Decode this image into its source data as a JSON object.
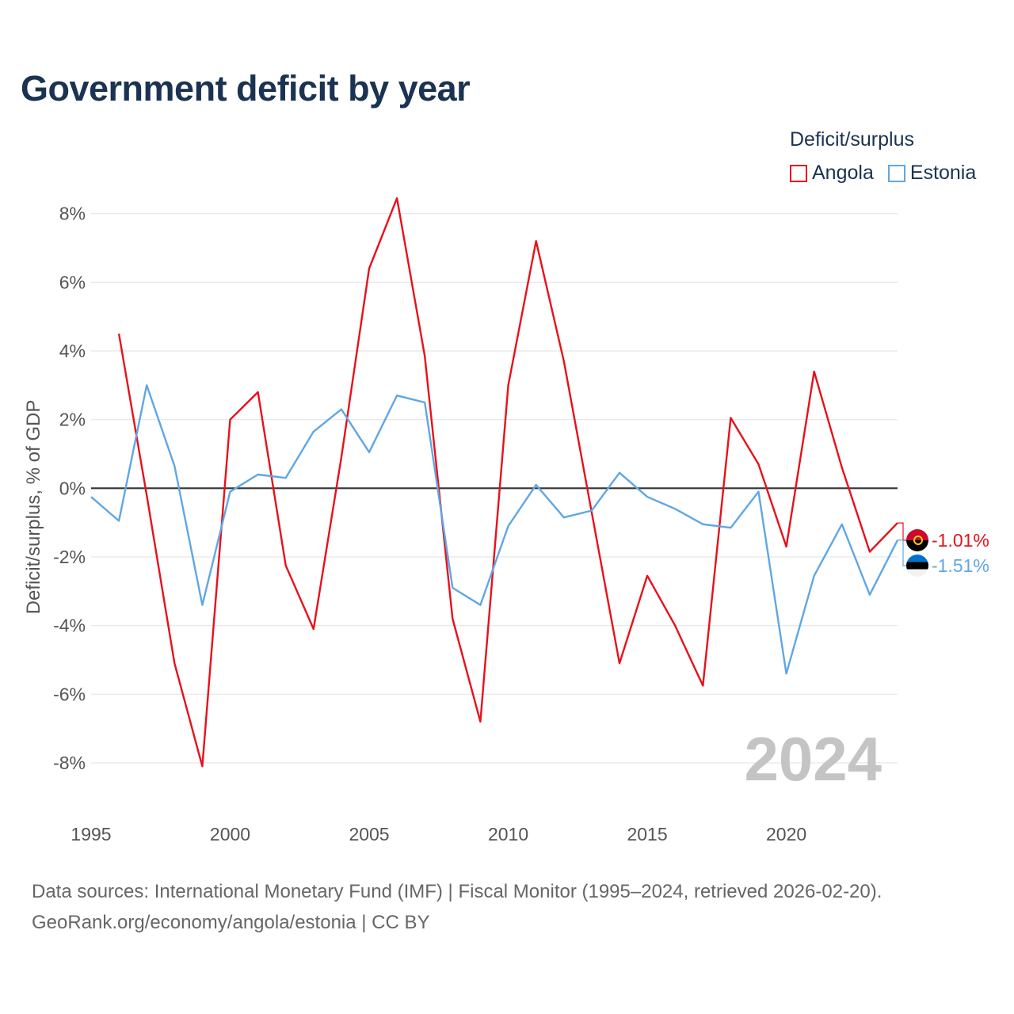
{
  "title": "Government deficit by year",
  "legend": {
    "title": "Deficit/surplus",
    "items": [
      {
        "label": "Angola",
        "color": "#e8101b"
      },
      {
        "label": "Estonia",
        "color": "#5fa7e4"
      }
    ]
  },
  "year_watermark": "2024",
  "footer": {
    "line1": "Data sources: International Monetary Fund (IMF) | Fiscal Monitor (1995–2024, retrieved 2026-02-20).",
    "line2": "GeoRank.org/economy/angola/estonia | CC BY"
  },
  "chart_data": {
    "type": "line",
    "title": "Government deficit by year",
    "xlabel": "",
    "ylabel": "Deficit/surplus, % of GDP",
    "xlim": [
      1995,
      2024
    ],
    "ylim": [
      -9.5,
      8.5
    ],
    "x_ticks": [
      1995,
      2000,
      2005,
      2010,
      2015,
      2020
    ],
    "y_ticks": [
      {
        "value": 8,
        "label": "8%"
      },
      {
        "value": 6,
        "label": "6%"
      },
      {
        "value": 4,
        "label": "4%"
      },
      {
        "value": 2,
        "label": "2%"
      },
      {
        "value": 0,
        "label": "0%"
      },
      {
        "value": -2,
        "label": "-2%"
      },
      {
        "value": -4,
        "label": "-4%"
      },
      {
        "value": -6,
        "label": "-6%"
      },
      {
        "value": -8,
        "label": "-8%"
      }
    ],
    "legend_position": "top-right",
    "series": [
      {
        "name": "Angola",
        "color": "#e8101b",
        "end_label": "-1.01%",
        "x": [
          1996,
          1997,
          1998,
          1999,
          2000,
          2001,
          2002,
          2003,
          2004,
          2005,
          2006,
          2007,
          2008,
          2009,
          2010,
          2011,
          2012,
          2013,
          2014,
          2015,
          2016,
          2017,
          2018,
          2019,
          2020,
          2021,
          2022,
          2023,
          2024
        ],
        "values": [
          4.5,
          -0.2,
          -5.1,
          -8.1,
          2.0,
          2.8,
          -2.25,
          -4.1,
          0.9,
          6.4,
          8.45,
          3.85,
          -3.8,
          -6.8,
          3.0,
          7.2,
          3.7,
          -0.7,
          -5.1,
          -2.55,
          -4.0,
          -5.75,
          2.05,
          0.7,
          -1.7,
          3.4,
          0.6,
          -1.85,
          -1.01
        ]
      },
      {
        "name": "Estonia",
        "color": "#5fa7e4",
        "end_label": "-1.51%",
        "x": [
          1995,
          1996,
          1997,
          1998,
          1999,
          2000,
          2001,
          2002,
          2003,
          2004,
          2005,
          2006,
          2007,
          2008,
          2009,
          2010,
          2011,
          2012,
          2013,
          2014,
          2015,
          2016,
          2017,
          2018,
          2019,
          2020,
          2021,
          2022,
          2023,
          2024
        ],
        "values": [
          -0.25,
          -0.95,
          3.0,
          0.65,
          -3.4,
          -0.1,
          0.4,
          0.3,
          1.65,
          2.3,
          1.05,
          2.7,
          2.5,
          -2.9,
          -3.4,
          -1.1,
          0.1,
          -0.85,
          -0.65,
          0.45,
          -0.25,
          -0.6,
          -1.05,
          -1.15,
          -0.1,
          -5.4,
          -2.55,
          -1.05,
          -3.1,
          -1.51
        ]
      }
    ]
  }
}
